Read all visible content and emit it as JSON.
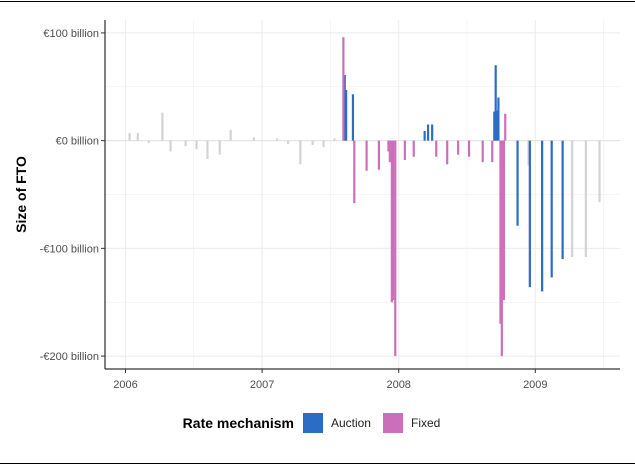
{
  "chart_data": {
    "type": "bar",
    "title": "",
    "xlabel": "",
    "ylabel": "Size of FTO",
    "xlim": [
      2005.85,
      2009.62
    ],
    "ylim": [
      -212,
      112
    ],
    "x_ticks": [
      {
        "value": 2006,
        "label": "2006"
      },
      {
        "value": 2007,
        "label": "2007"
      },
      {
        "value": 2008,
        "label": "2008"
      },
      {
        "value": 2009,
        "label": "2009"
      }
    ],
    "y_ticks": [
      {
        "value": 100,
        "label": "€100 billion"
      },
      {
        "value": 0,
        "label": "€0 billion"
      },
      {
        "value": -100,
        "label": "-€100 billion"
      },
      {
        "value": -200,
        "label": "-€200 billion"
      }
    ],
    "grid": true,
    "legend": {
      "title": "Rate mechanism",
      "position": "bottom",
      "entries": [
        {
          "name": "Auction",
          "color": "#2b6cc4"
        },
        {
          "name": "Fixed",
          "color": "#cc6fba"
        }
      ]
    },
    "colors": {
      "Auction": "#2b6cc4",
      "Fixed": "#cc6fba",
      "other": "#d3d3d3"
    },
    "series": [
      {
        "name": "",
        "color": "#d3d3d3",
        "points": [
          [
            2006.03,
            7
          ],
          [
            2006.09,
            7
          ],
          [
            2006.17,
            -2
          ],
          [
            2006.27,
            26
          ],
          [
            2006.33,
            -10
          ],
          [
            2006.44,
            -5
          ],
          [
            2006.52,
            -8
          ],
          [
            2006.6,
            -17
          ],
          [
            2006.69,
            -13
          ],
          [
            2006.77,
            10
          ],
          [
            2006.94,
            3
          ],
          [
            2007.11,
            2
          ],
          [
            2007.19,
            -3
          ],
          [
            2007.28,
            -22
          ],
          [
            2007.37,
            -4
          ],
          [
            2007.45,
            -6
          ],
          [
            2007.53,
            2
          ],
          [
            2008.95,
            -23
          ],
          [
            2009.27,
            -108
          ],
          [
            2009.37,
            -108
          ],
          [
            2009.47,
            -57
          ]
        ]
      },
      {
        "name": "Auction",
        "color": "#2b6cc4",
        "points": [
          [
            2007.605,
            61
          ],
          [
            2007.615,
            47
          ],
          [
            2007.665,
            43
          ],
          [
            2008.19,
            9
          ],
          [
            2008.215,
            15
          ],
          [
            2008.245,
            15
          ],
          [
            2008.7,
            27
          ],
          [
            2008.71,
            70
          ],
          [
            2008.72,
            28
          ],
          [
            2008.73,
            40
          ],
          [
            2008.87,
            -79
          ],
          [
            2008.96,
            -136
          ],
          [
            2009.05,
            -140
          ],
          [
            2009.12,
            -127
          ],
          [
            2009.2,
            -110
          ]
        ]
      },
      {
        "name": "Fixed",
        "color": "#cc6fba",
        "points": [
          [
            2007.595,
            96
          ],
          [
            2007.675,
            -58
          ],
          [
            2007.765,
            -28
          ],
          [
            2007.855,
            -27
          ],
          [
            2007.925,
            -10
          ],
          [
            2007.935,
            -20
          ],
          [
            2007.95,
            -150
          ],
          [
            2007.96,
            -148
          ],
          [
            2007.975,
            -200
          ],
          [
            2008.045,
            -18
          ],
          [
            2008.11,
            -15
          ],
          [
            2008.275,
            -15
          ],
          [
            2008.355,
            -22
          ],
          [
            2008.435,
            -13
          ],
          [
            2008.515,
            -15
          ],
          [
            2008.615,
            -20
          ],
          [
            2008.685,
            -20
          ],
          [
            2008.745,
            -170
          ],
          [
            2008.755,
            -200
          ],
          [
            2008.77,
            -148
          ],
          [
            2008.78,
            25
          ]
        ]
      }
    ]
  }
}
